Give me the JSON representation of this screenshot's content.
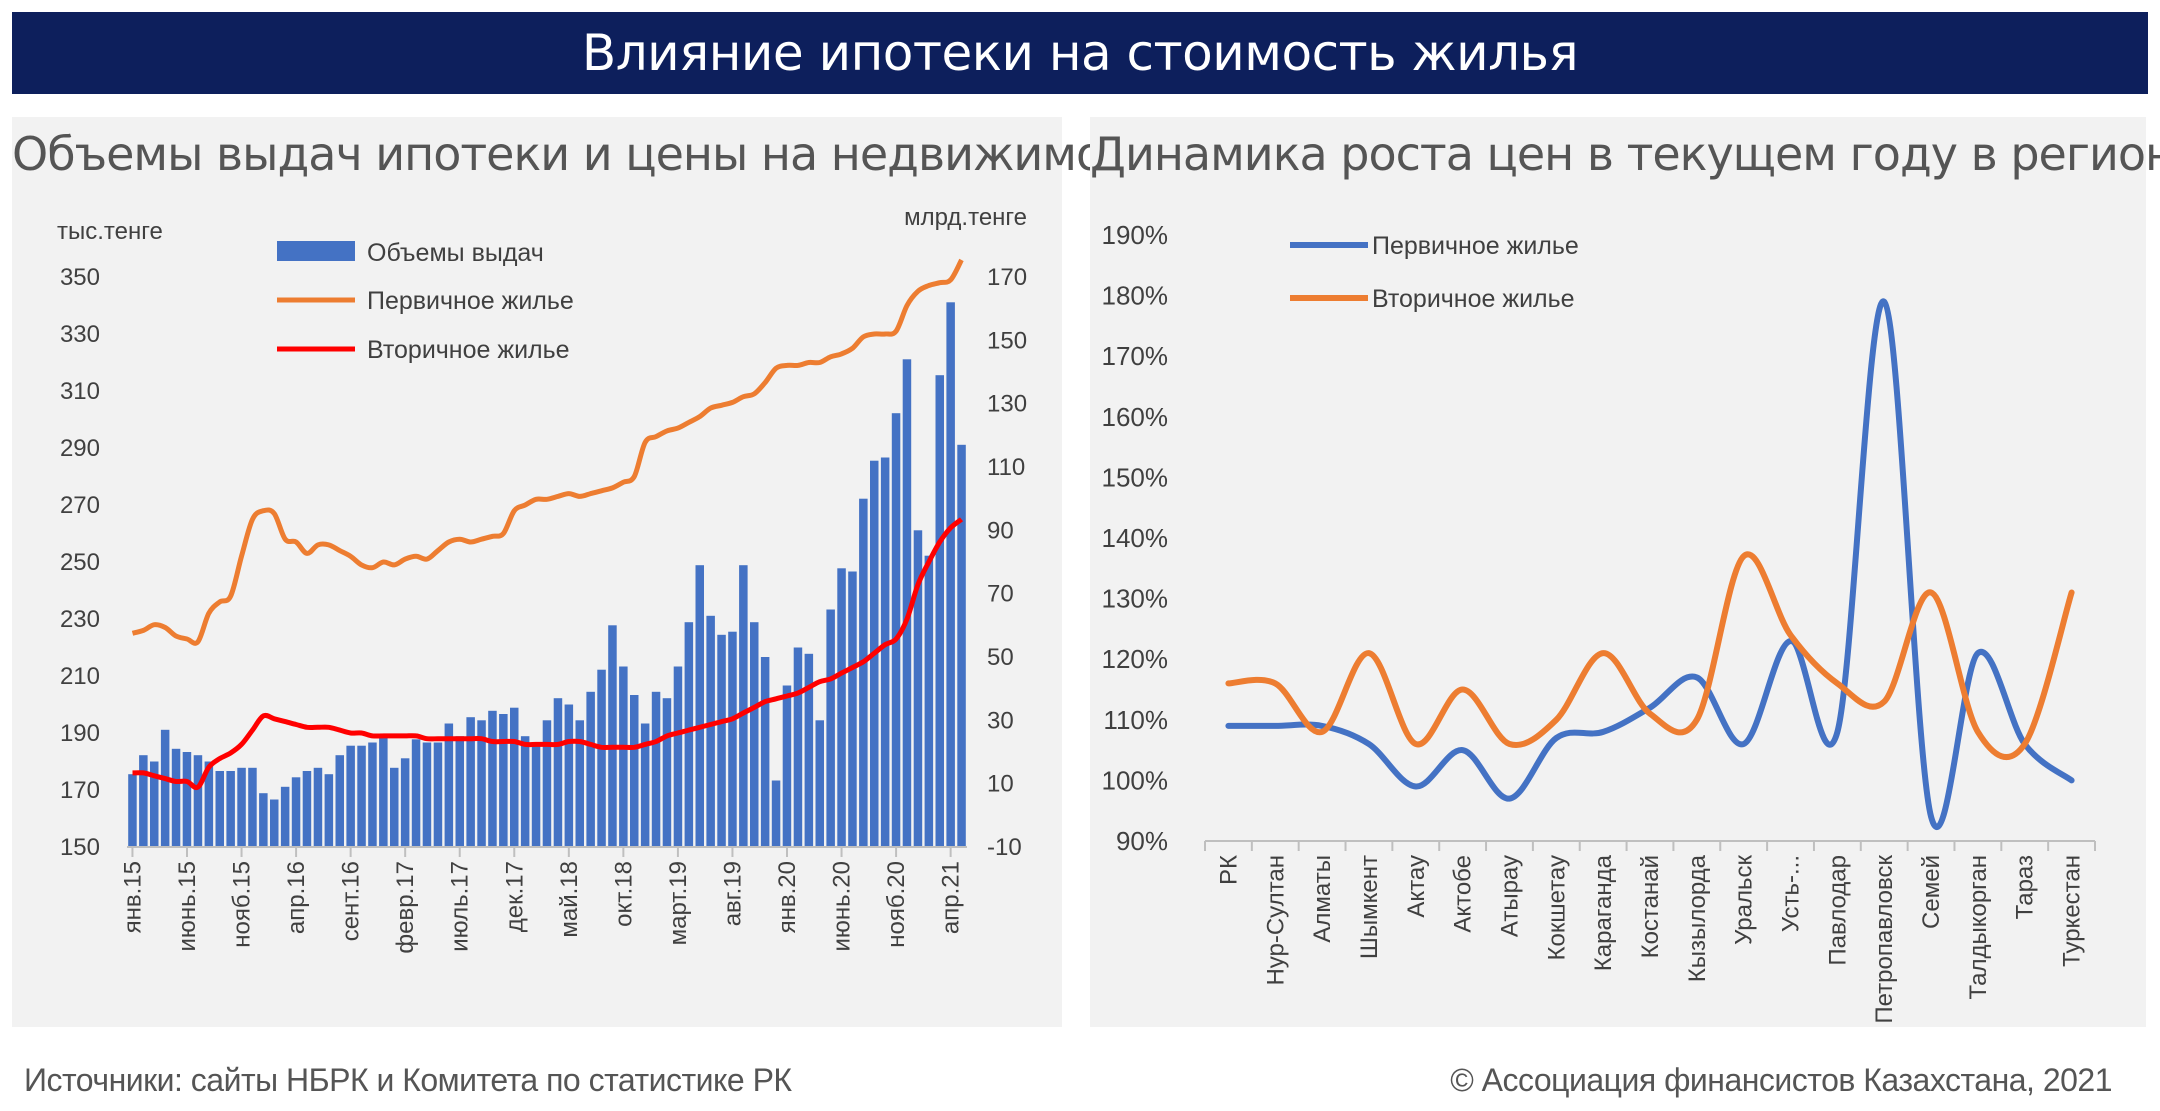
{
  "header": {
    "title": "Влияние ипотеки на  стоимость жилья"
  },
  "footer": {
    "source": "Источники: сайты НБРК и Комитета по статистике РК",
    "copyright": "© Ассоциация финансистов Казахстана, 2021"
  },
  "chart_data": [
    {
      "type": "bar",
      "title": "Объемы выдач ипотеки и цены на недвижимость",
      "y_left_label": "тыс.тенге",
      "y_right_label": "млрд.тенге",
      "y_left_ticks": [
        "350",
        "330",
        "310",
        "290",
        "270",
        "250",
        "230",
        "210",
        "190",
        "170",
        "150"
      ],
      "y_right_ticks": [
        "170",
        "150",
        "130",
        "110",
        "90",
        "70",
        "50",
        "30",
        "10",
        "-10"
      ],
      "ylim_left": [
        150,
        350
      ],
      "ylim_right": [
        -10,
        170
      ],
      "legend_position": "top-left",
      "x_tick_labels": [
        "янв.15",
        "июнь.15",
        "нояб.15",
        "апр.16",
        "сент.16",
        "февр.17",
        "июль.17",
        "дек.17",
        "май.18",
        "окт.18",
        "март.19",
        "авг.19",
        "янв.20",
        "июнь.20",
        "нояб.20",
        "апр.21"
      ],
      "x_tick_indices": [
        0,
        5,
        10,
        15,
        20,
        25,
        30,
        35,
        40,
        45,
        50,
        55,
        60,
        65,
        70,
        75
      ],
      "series": [
        {
          "name": "Объемы выдач",
          "type": "bar",
          "axis": "right",
          "color": "#4472c4",
          "values": [
            13,
            19,
            17,
            27,
            21,
            20,
            19,
            17,
            14,
            14,
            15,
            15,
            7,
            5,
            9,
            12,
            14,
            15,
            13,
            19,
            22,
            22,
            23,
            25,
            15,
            18,
            24,
            23,
            23,
            29,
            25,
            31,
            30,
            33,
            32,
            34,
            25,
            23,
            30,
            37,
            35,
            30,
            39,
            46,
            60,
            47,
            38,
            29,
            39,
            37,
            47,
            61,
            79,
            63,
            57,
            58,
            79,
            61,
            50,
            11,
            41,
            53,
            51,
            30,
            65,
            78,
            77,
            100,
            112,
            113,
            127,
            144,
            90,
            82,
            139,
            162,
            117
          ]
        },
        {
          "name": "Первичное жилье",
          "type": "line",
          "axis": "left",
          "color": "#ed7d31",
          "values": [
            225,
            226,
            228,
            227,
            224,
            223,
            222,
            232,
            236,
            238,
            252,
            265,
            268,
            267,
            258,
            257,
            253,
            256,
            256,
            254,
            252,
            249,
            248,
            250,
            249,
            251,
            252,
            251,
            254,
            257,
            258,
            257,
            258,
            259,
            260,
            268,
            270,
            272,
            272,
            273,
            274,
            273,
            274,
            275,
            276,
            278,
            280,
            292,
            294,
            296,
            297,
            299,
            301,
            304,
            305,
            306,
            308,
            309,
            313,
            318,
            319,
            319,
            320,
            320,
            322,
            323,
            325,
            329,
            330,
            330,
            331,
            340,
            345,
            347,
            348,
            349,
            356
          ]
        },
        {
          "name": "Вторичное жилье",
          "type": "line",
          "axis": "left",
          "color": "#ff0000",
          "values": [
            176,
            176,
            175,
            174,
            173,
            173,
            171,
            178,
            181,
            183,
            186,
            191,
            196,
            195,
            194,
            193,
            192,
            192,
            192,
            191,
            190,
            190,
            189,
            189,
            189,
            189,
            189,
            188,
            188,
            188,
            188,
            188,
            188,
            187,
            187,
            187,
            186,
            186,
            186,
            186,
            187,
            187,
            186,
            185,
            185,
            185,
            185,
            186,
            187,
            189,
            190,
            191,
            192,
            193,
            194,
            195,
            197,
            199,
            201,
            202,
            203,
            204,
            206,
            208,
            209,
            211,
            213,
            215,
            218,
            221,
            223,
            230,
            242,
            250,
            257,
            262,
            265
          ]
        }
      ]
    },
    {
      "type": "line",
      "title": "Динамика роста цен в текущем году в регионах",
      "y_ticks": [
        "190%",
        "180%",
        "170%",
        "160%",
        "150%",
        "140%",
        "130%",
        "120%",
        "110%",
        "100%",
        "90%"
      ],
      "ylim": [
        90,
        190
      ],
      "grid": false,
      "legend_position": "top-left",
      "categories": [
        "РК",
        "Нур-Султан",
        "Алматы",
        "Шымкент",
        "Актау",
        "Актобе",
        "Атырау",
        "Кокшетау",
        "Караганда",
        "Костанай",
        "Кызылорда",
        "Уральск",
        "Усть-...",
        "Павлодар",
        "Петропавловск",
        "Семей",
        "Талдыкорган",
        "Тараз",
        "Туркестан"
      ],
      "series": [
        {
          "name": "Первичное жилье",
          "color": "#4472c4",
          "values": [
            109,
            109,
            109,
            106,
            99,
            105,
            97,
            107,
            108,
            112,
            117,
            106,
            123,
            108,
            179,
            94,
            121,
            106,
            100
          ]
        },
        {
          "name": "Вторичное жилье",
          "color": "#ed7d31",
          "values": [
            116,
            116,
            108,
            121,
            106,
            115,
            106,
            110,
            121,
            111,
            110,
            137,
            124,
            116,
            113,
            131,
            108,
            106,
            131
          ]
        }
      ]
    }
  ]
}
